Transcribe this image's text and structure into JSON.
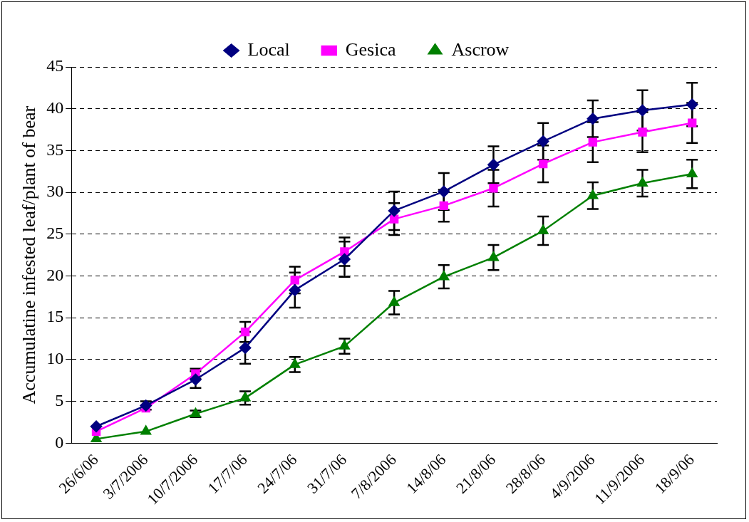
{
  "chart_data": {
    "type": "line",
    "ylabel": "Accumulatine infested leaf/plant of bear",
    "categories": [
      "26/6/06",
      "3/7/2006",
      "10/7/2006",
      "17/7/06",
      "24/7/06",
      "31/7/06",
      "7/8/2006",
      "14/8/06",
      "21/8/06",
      "28/8/06",
      "4/9/2006",
      "11/9/2006",
      "18/9/06"
    ],
    "series": [
      {
        "name": "Local",
        "color": "#000080",
        "marker": "diamond",
        "values": [
          2.0,
          4.5,
          7.6,
          11.4,
          18.3,
          22.0,
          27.8,
          30.1,
          33.3,
          36.1,
          38.8,
          39.8,
          40.5
        ],
        "errors": [
          null,
          0.5,
          1.0,
          1.9,
          2.1,
          2.1,
          2.3,
          2.2,
          2.2,
          2.2,
          2.2,
          2.4,
          2.6
        ]
      },
      {
        "name": "Gesica",
        "color": "#ff00ff",
        "marker": "square",
        "values": [
          1.4,
          4.2,
          8.3,
          13.3,
          19.5,
          22.9,
          26.8,
          28.4,
          30.5,
          33.4,
          36.0,
          37.2,
          38.3
        ],
        "errors": [
          null,
          null,
          0.6,
          1.2,
          1.6,
          1.7,
          1.9,
          1.9,
          2.2,
          2.2,
          2.4,
          2.4,
          2.4
        ]
      },
      {
        "name": "Ascrow",
        "color": "#008000",
        "marker": "triangle",
        "values": [
          0.5,
          1.4,
          3.5,
          5.4,
          9.4,
          11.6,
          16.8,
          19.9,
          22.2,
          25.4,
          29.6,
          31.1,
          32.2
        ],
        "errors": [
          null,
          null,
          0.4,
          0.8,
          0.9,
          0.9,
          1.4,
          1.4,
          1.5,
          1.7,
          1.6,
          1.6,
          1.7
        ]
      }
    ],
    "ylim": [
      0,
      45
    ],
    "yticks": [
      0,
      5,
      10,
      15,
      20,
      25,
      30,
      35,
      40,
      45
    ],
    "grid": "y",
    "legend": "top",
    "line_style": "solid"
  }
}
